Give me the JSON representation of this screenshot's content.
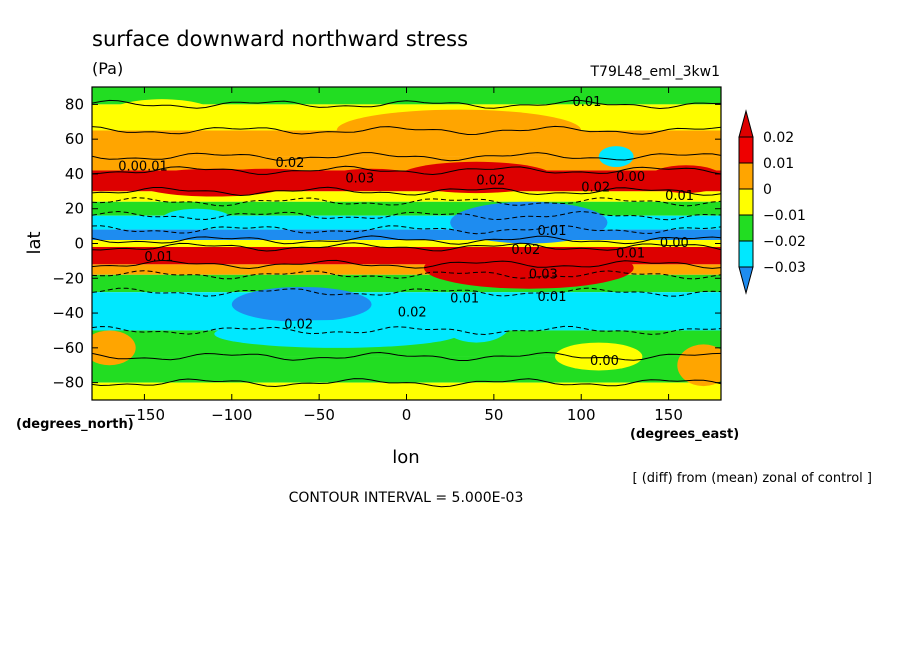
{
  "chart_data": {
    "type": "heatmap",
    "title": "surface downward northward stress",
    "units": "(Pa)",
    "dataset_label": "T79L48_eml_3kw1",
    "xlabel": "lon",
    "ylabel": "lat",
    "x_units_label": "(degrees_east)",
    "y_units_label": "(degrees_north)",
    "xlim": [
      -180,
      180
    ],
    "ylim": [
      -90,
      90
    ],
    "x_ticks": [
      -150,
      -100,
      -50,
      0,
      50,
      100,
      150
    ],
    "x_tick_labels": [
      "−150",
      "−100",
      "−50",
      "0",
      "50",
      "100",
      "150"
    ],
    "y_ticks": [
      -80,
      -60,
      -40,
      -20,
      0,
      20,
      40,
      60,
      80
    ],
    "y_tick_labels": [
      "−80",
      "−60",
      "−40",
      "−20",
      "0",
      "20",
      "40",
      "60",
      "80"
    ],
    "footnote": "[ (diff) from (mean) zonal of control ]",
    "contour_interval_text": "CONTOUR INTERVAL = 5.000E-03",
    "colorbar": {
      "levels": [
        -0.03,
        -0.02,
        -0.01,
        0,
        0.01,
        0.02
      ],
      "labels": [
        "−0.03",
        "−0.02",
        "−0.01",
        "0",
        "0.01",
        "0.02"
      ],
      "colors": [
        "#1e8cf0",
        "#00e8ff",
        "#22dd22",
        "#ffff00",
        "#ffa500",
        "#ee0000",
        "#dd0000"
      ],
      "band_ranges": [
        "< -0.03",
        "-0.03 to -0.02",
        "-0.02 to -0.01",
        "-0.01 to 0",
        "0 to 0.01",
        "0.01 to 0.02",
        "> 0.02"
      ]
    },
    "bands": [
      {
        "lat_from": 90,
        "lat_to": 80,
        "color": "#22dd22"
      },
      {
        "lat_from": 80,
        "lat_to": 65,
        "color": "#ffff00"
      },
      {
        "lat_from": 65,
        "lat_to": 50,
        "color": "#ffa500"
      },
      {
        "lat_from": 50,
        "lat_to": 42,
        "color": "#ffa500"
      },
      {
        "lat_from": 42,
        "lat_to": 30,
        "color": "#dd0000"
      },
      {
        "lat_from": 30,
        "lat_to": 24,
        "color": "#ffff00"
      },
      {
        "lat_from": 24,
        "lat_to": 16,
        "color": "#22dd22"
      },
      {
        "lat_from": 16,
        "lat_to": 8,
        "color": "#00e8ff"
      },
      {
        "lat_from": 8,
        "lat_to": 2,
        "color": "#1e8cf0"
      },
      {
        "lat_from": 2,
        "lat_to": -2,
        "color": "#ffff00"
      },
      {
        "lat_from": -2,
        "lat_to": -12,
        "color": "#dd0000"
      },
      {
        "lat_from": -12,
        "lat_to": -18,
        "color": "#ffa500"
      },
      {
        "lat_from": -18,
        "lat_to": -28,
        "color": "#22dd22"
      },
      {
        "lat_from": -28,
        "lat_to": -50,
        "color": "#00e8ff"
      },
      {
        "lat_from": -50,
        "lat_to": -65,
        "color": "#22dd22"
      },
      {
        "lat_from": -65,
        "lat_to": -80,
        "color": "#22dd22"
      },
      {
        "lat_from": -80,
        "lat_to": -90,
        "color": "#ffff00"
      }
    ],
    "patches": [
      {
        "lon": -110,
        "lat": 35,
        "rlon": 45,
        "rlat": 8,
        "color": "#dd0000"
      },
      {
        "lon": -80,
        "lat": 37,
        "rlon": 35,
        "rlat": 6,
        "color": "#dd0000"
      },
      {
        "lon": -20,
        "lat": 38,
        "rlon": 25,
        "rlat": 5,
        "color": "#dd0000"
      },
      {
        "lon": 40,
        "lat": 38,
        "rlon": 45,
        "rlat": 9,
        "color": "#dd0000"
      },
      {
        "lon": 160,
        "lat": 37,
        "rlon": 22,
        "rlat": 8,
        "color": "#dd0000"
      },
      {
        "lon": 30,
        "lat": 65,
        "rlon": 70,
        "rlat": 12,
        "color": "#ffa500"
      },
      {
        "lon": -140,
        "lat": 75,
        "rlon": 30,
        "rlat": 8,
        "color": "#ffff00"
      },
      {
        "lon": 70,
        "lat": 12,
        "rlon": 45,
        "rlat": 12,
        "color": "#1e8cf0"
      },
      {
        "lon": 120,
        "lat": 50,
        "rlon": 10,
        "rlat": 6,
        "color": "#00e8ff"
      },
      {
        "lon": -120,
        "lat": 14,
        "rlon": 20,
        "rlat": 6,
        "color": "#00e8ff"
      },
      {
        "lon": 70,
        "lat": -14,
        "rlon": 60,
        "rlat": 12,
        "color": "#dd0000"
      },
      {
        "lon": -60,
        "lat": -35,
        "rlon": 40,
        "rlat": 10,
        "color": "#1e8cf0"
      },
      {
        "lon": -40,
        "lat": -52,
        "rlon": 70,
        "rlat": 8,
        "color": "#00e8ff"
      },
      {
        "lon": 40,
        "lat": -45,
        "rlon": 20,
        "rlat": 12,
        "color": "#00e8ff"
      },
      {
        "lon": -170,
        "lat": -60,
        "rlon": 15,
        "rlat": 10,
        "color": "#ffa500"
      },
      {
        "lon": 170,
        "lat": -70,
        "rlon": 15,
        "rlat": 12,
        "color": "#ffa500"
      },
      {
        "lon": 110,
        "lat": -65,
        "rlon": 25,
        "rlat": 8,
        "color": "#ffff00"
      }
    ],
    "contour_labels": [
      {
        "text": "0.00.01",
        "lon": -165,
        "lat": 42
      },
      {
        "text": "0.02",
        "lon": -75,
        "lat": 44
      },
      {
        "text": "0.03",
        "lon": -35,
        "lat": 35
      },
      {
        "text": "0.02",
        "lon": 40,
        "lat": 34
      },
      {
        "text": "0.01",
        "lon": 95,
        "lat": 79
      },
      {
        "text": "0.02",
        "lon": 100,
        "lat": 30
      },
      {
        "text": "0.00",
        "lon": 120,
        "lat": 36
      },
      {
        "text": "0.01",
        "lon": 148,
        "lat": 25
      },
      {
        "text": "0.01",
        "lon": 75,
        "lat": 5
      },
      {
        "text": "0.02",
        "lon": 60,
        "lat": -6
      },
      {
        "text": "0.01",
        "lon": 120,
        "lat": -8
      },
      {
        "text": "0.00",
        "lon": 145,
        "lat": -2
      },
      {
        "text": "0.01",
        "lon": -150,
        "lat": -10
      },
      {
        "text": "0.03",
        "lon": 70,
        "lat": -20
      },
      {
        "text": "0.01",
        "lon": 25,
        "lat": -34
      },
      {
        "text": "0.01",
        "lon": 75,
        "lat": -33
      },
      {
        "text": "0.02",
        "lon": -5,
        "lat": -42
      },
      {
        "text": "0.02",
        "lon": -70,
        "lat": -49
      },
      {
        "text": "0.00",
        "lon": 105,
        "lat": -70
      }
    ]
  }
}
